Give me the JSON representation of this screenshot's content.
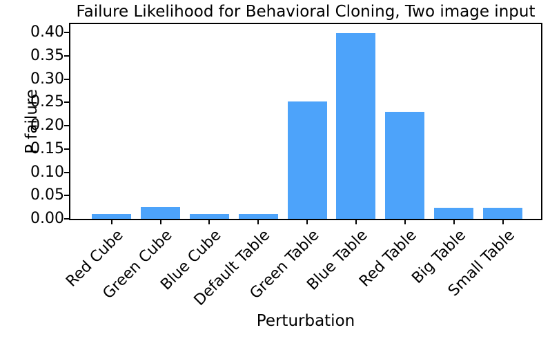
{
  "chart_data": {
    "type": "bar",
    "title": "Failure Likelihood for Behavioral Cloning, Two image input",
    "xlabel": "Perturbation",
    "ylabel": "P failure",
    "categories": [
      "Red Cube",
      "Green Cube",
      "Blue Cube",
      "Default Table",
      "Green Table",
      "Blue Table",
      "Red Table",
      "Big Table",
      "Small Table"
    ],
    "values": [
      0.011,
      0.025,
      0.01,
      0.01,
      0.252,
      0.398,
      0.23,
      0.023,
      0.024
    ],
    "ylim": [
      0,
      0.418
    ],
    "yticks": [
      0.0,
      0.05,
      0.1,
      0.15,
      0.2,
      0.25,
      0.3,
      0.35,
      0.4
    ],
    "ytick_labels": [
      "0.00",
      "0.05",
      "0.10",
      "0.15",
      "0.20",
      "0.25",
      "0.30",
      "0.35",
      "0.40"
    ],
    "xtick_rotation_deg": 45,
    "grid": false,
    "bar_color": "#4da3fa",
    "axis_color": "#000000",
    "text_color": "#000000",
    "background_color": "#ffffff"
  }
}
